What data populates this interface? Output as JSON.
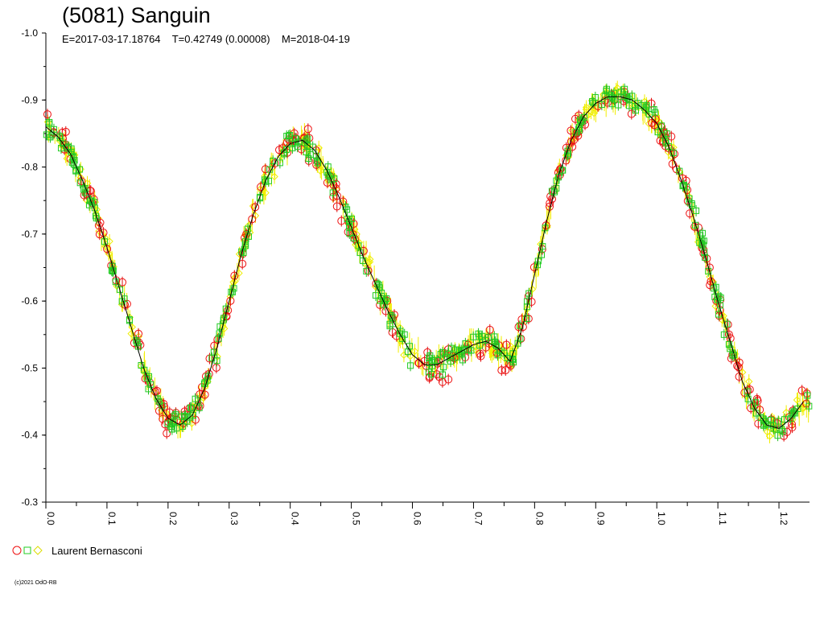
{
  "title": "(5081) Sanguin",
  "subtitle": "E=2017-03-17.18764    T=0.42749 (0.00008)    M=2018-04-19",
  "chart_data": {
    "type": "scatter",
    "title": "(5081) Sanguin",
    "subtitle": "E=2017-03-17.18764    T=0.42749 (0.00008)    M=2018-04-19",
    "xlabel": "",
    "ylabel": "",
    "xlim": [
      0.0,
      1.25
    ],
    "ylim": [
      -1.0,
      -0.3
    ],
    "y_inverted": true,
    "x_ticks": [
      "0.0",
      "0.1",
      "0.2",
      "0.3",
      "0.4",
      "0.5",
      "0.6",
      "0.7",
      "0.8",
      "0.9",
      "1.0",
      "1.1",
      "1.2"
    ],
    "y_ticks": [
      "-1.0",
      "-0.9",
      "-0.8",
      "-0.7",
      "-0.6",
      "-0.5",
      "-0.4",
      "-0.3"
    ],
    "grid": false,
    "legend_position": "bottom-left",
    "fit_curve": {
      "name": "fit",
      "color": "#000000",
      "x": [
        0.0,
        0.02,
        0.04,
        0.06,
        0.08,
        0.1,
        0.12,
        0.14,
        0.16,
        0.18,
        0.2,
        0.22,
        0.24,
        0.26,
        0.28,
        0.3,
        0.32,
        0.34,
        0.36,
        0.38,
        0.4,
        0.42,
        0.44,
        0.46,
        0.48,
        0.5,
        0.52,
        0.54,
        0.56,
        0.58,
        0.6,
        0.62,
        0.64,
        0.66,
        0.68,
        0.7,
        0.72,
        0.74,
        0.76,
        0.78,
        0.8,
        0.82,
        0.84,
        0.86,
        0.88,
        0.9,
        0.92,
        0.94,
        0.96,
        0.98,
        1.0,
        1.02,
        1.04,
        1.06,
        1.08,
        1.1,
        1.12,
        1.14,
        1.16,
        1.18,
        1.2,
        1.22,
        1.24
      ],
      "y": [
        -0.86,
        -0.845,
        -0.82,
        -0.78,
        -0.735,
        -0.68,
        -0.62,
        -0.56,
        -0.5,
        -0.455,
        -0.425,
        -0.415,
        -0.43,
        -0.47,
        -0.53,
        -0.6,
        -0.67,
        -0.73,
        -0.78,
        -0.815,
        -0.835,
        -0.84,
        -0.825,
        -0.795,
        -0.755,
        -0.71,
        -0.665,
        -0.625,
        -0.585,
        -0.55,
        -0.52,
        -0.505,
        -0.505,
        -0.515,
        -0.525,
        -0.535,
        -0.54,
        -0.53,
        -0.51,
        -0.56,
        -0.64,
        -0.72,
        -0.79,
        -0.84,
        -0.875,
        -0.895,
        -0.905,
        -0.905,
        -0.9,
        -0.885,
        -0.865,
        -0.83,
        -0.78,
        -0.725,
        -0.665,
        -0.6,
        -0.54,
        -0.48,
        -0.44,
        -0.415,
        -0.41,
        -0.425,
        -0.45
      ]
    },
    "series": [
      {
        "symbol": "circle",
        "color": "#ee1111"
      },
      {
        "symbol": "square",
        "color": "#22cc22"
      },
      {
        "symbol": "diamond",
        "color": "#eeee00"
      }
    ],
    "legend_label": "Laurent Bernasconi"
  },
  "legend_label": "Laurent Bernasconi",
  "copyright": "(c)2021 OdO-RB"
}
